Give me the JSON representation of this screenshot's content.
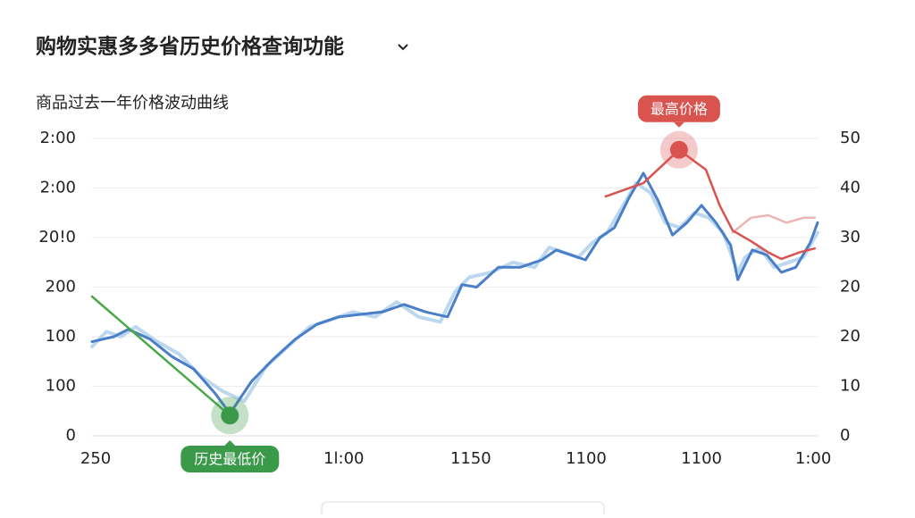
{
  "title": "购物实惠多多省历史价格查询功能",
  "chart_data": {
    "type": "line",
    "title": "商品过去一年价格波动曲线",
    "xlim": [
      0,
      100
    ],
    "xticks": [
      {
        "value": 0.5,
        "label": "250"
      },
      {
        "value": 34.7,
        "label": "1l:00"
      },
      {
        "value": 52.2,
        "label": "1150",
        "color": "#3a9a4a"
      },
      {
        "value": 68.1,
        "label": "1100"
      },
      {
        "value": 84,
        "label": "1100"
      },
      {
        "value": 99.4,
        "label": "1:00"
      }
    ],
    "ylim": [
      0,
      60
    ],
    "yticks": [
      0,
      {
        "value": 10,
        "label": "100"
      },
      {
        "value": 20,
        "label": "100"
      },
      {
        "value": 30,
        "label": "200"
      },
      {
        "value": 40,
        "label": "20!0"
      },
      {
        "value": 50,
        "label": "2:00"
      },
      {
        "value": 60,
        "label": "2:00"
      }
    ],
    "y2lim": [
      0,
      60
    ],
    "y2ticks": [
      0,
      10,
      20,
      {
        "value": 30,
        "label": "20"
      },
      {
        "value": 40,
        "label": "30"
      },
      {
        "value": 50,
        "label": "40"
      },
      {
        "value": 60,
        "label": "50"
      }
    ],
    "grid": true,
    "series": [
      {
        "color": "#bcd8ef",
        "width": 4,
        "axis": "y2",
        "x": [
          0,
          2,
          4,
          6,
          9,
          12,
          15,
          18,
          21,
          24,
          27,
          30,
          33,
          36,
          39,
          42,
          45,
          48,
          50,
          52,
          55,
          58,
          61,
          63,
          65,
          67,
          69,
          71,
          73,
          75,
          77,
          79,
          81,
          83,
          85,
          87,
          89,
          90,
          92,
          94,
          96,
          98,
          100
        ],
        "values": [
          18,
          21,
          20,
          22,
          19,
          16.5,
          12,
          9,
          7,
          14,
          18,
          22,
          23.5,
          25,
          24,
          27,
          24,
          23,
          29,
          32,
          33,
          35,
          34,
          38,
          37,
          36,
          39,
          41,
          46,
          51,
          49,
          43,
          42,
          45,
          44,
          41,
          33,
          36,
          38,
          34,
          35,
          36,
          41
        ]
      },
      {
        "color": "#4a7fc8",
        "width": 3,
        "axis": "y2",
        "x": [
          0,
          3,
          5,
          8,
          11,
          14,
          17,
          19,
          22,
          25,
          28,
          31,
          34,
          37,
          40,
          43,
          46,
          49,
          51,
          53,
          56,
          59,
          62,
          64,
          66,
          68,
          70,
          72,
          74,
          76,
          78,
          80,
          82,
          84,
          86,
          88,
          89,
          91,
          93,
          95,
          97,
          99,
          100
        ],
        "values": [
          19,
          20,
          21.5,
          19.5,
          16,
          13.5,
          8.5,
          4.5,
          11,
          15.5,
          19.5,
          22.5,
          24,
          24.5,
          25,
          26.5,
          25,
          24,
          30.5,
          30,
          34,
          34,
          35.5,
          37.5,
          36.5,
          35.5,
          40,
          42,
          48,
          53,
          47.5,
          40.5,
          43,
          46.5,
          43,
          38.5,
          31.5,
          37.5,
          36.5,
          33,
          34,
          39,
          43
        ]
      },
      {
        "color": "#ecb4b4",
        "width": 2.5,
        "axis": "y2",
        "x": [
          88.3,
          90.8,
          93.2,
          95.7,
          98.1,
          99.6
        ],
        "values": [
          41,
          44,
          44.5,
          43,
          44,
          44
        ]
      },
      {
        "color": "#d9534f",
        "width": 2.5,
        "axis": "y2",
        "x": [
          70.8,
          76,
          80.9,
          84.6,
          86.5,
          88.3,
          90.8,
          93.2,
          95,
          97.5,
          99.6
        ],
        "values": [
          48.3,
          51,
          57.7,
          53.7,
          46.5,
          41.4,
          39.3,
          37,
          35.7,
          37,
          37.8
        ]
      },
      {
        "color": "#4aa84a",
        "width": 2.5,
        "axis": "y2",
        "x": [
          0,
          19
        ],
        "values": [
          28.1,
          4.1
        ]
      }
    ],
    "annotations": [
      {
        "text": "最高价格",
        "x": 80.9,
        "y": 57.7,
        "color": "#d9534f",
        "position": "above"
      },
      {
        "text": "历史最低价",
        "x": 19,
        "y": 4.1,
        "color": "#3a9a4a",
        "position": "below"
      }
    ]
  }
}
